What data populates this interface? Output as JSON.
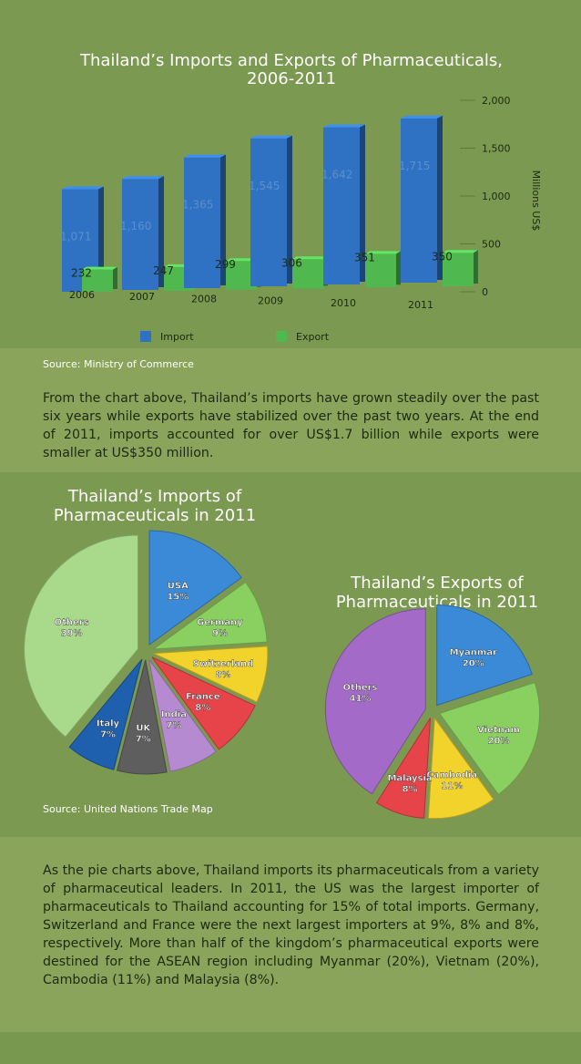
{
  "bar_chart": {
    "title_line1": "Thailand’s Imports and Exports of Pharmaceuticals,",
    "title_line2": "2006-2011",
    "source": "Source: Ministry of Commerce"
  },
  "paragraph1": "From the chart above, Thailand’s imports have grown steadily over the past six years while exports have stabilized over the past two years. At the end of 2011, imports accounted for over US$1.7 billion while exports were smaller at US$350 million.",
  "imports_pie": {
    "title_line1": "Thailand’s Imports of",
    "title_line2": "Pharmaceuticals in 2011"
  },
  "exports_pie": {
    "title_line1": "Thailand’s Exports of",
    "title_line2": "Pharmaceuticals in 2011"
  },
  "pie_source": "Source: United Nations Trade Map",
  "paragraph2": "As the pie charts above, Thailand imports its pharmaceuticals from a variety of pharmaceutical leaders. In 2011, the US was the largest importer of pharmaceuticals to Thailand accounting for 15% of total imports. Germany, Switzerland and France were the next largest importers at 9%, 8% and 8%, respectively. More than half of the kingdom’s pharmaceutical exports were destined for the ASEAN region including Myanmar (20%), Vietnam (20%), Cambodia (11%) and Malaysia (8%).",
  "chart_data": [
    {
      "type": "bar",
      "title": "Thailand’s Imports and Exports of Pharmaceuticals, 2006-2011",
      "categories": [
        "2006",
        "2007",
        "2008",
        "2009",
        "2010",
        "2011"
      ],
      "series": [
        {
          "name": "Import",
          "values": [
            1071,
            1160,
            1365,
            1545,
            1642,
            1715
          ],
          "labels": [
            "1,071",
            "1,160",
            "1,365",
            "1,545",
            "1,642",
            "1,715"
          ],
          "color": "#2f72c4"
        },
        {
          "name": "Export",
          "values": [
            232,
            247,
            299,
            306,
            351,
            350
          ],
          "labels": [
            "232",
            "247",
            "299",
            "306",
            "351",
            "350"
          ],
          "color": "#4fb84f"
        }
      ],
      "ylabel": "Millions US$",
      "ylim": [
        0,
        2000
      ],
      "yticks": [
        "0",
        "500",
        "1,000",
        "1,500",
        "2,000"
      ],
      "legend_position": "bottom",
      "grid": false
    },
    {
      "type": "pie",
      "title": "Thailand’s Imports of Pharmaceuticals in 2011",
      "slices": [
        {
          "label": "USA",
          "value": 15,
          "pct": "15%",
          "color": "#3a8ad8"
        },
        {
          "label": "Germany",
          "value": 9,
          "pct": "9%",
          "color": "#8ad060"
        },
        {
          "label": "Switzerland",
          "value": 8,
          "pct": "8%",
          "color": "#f2d32b"
        },
        {
          "label": "France",
          "value": 8,
          "pct": "8%",
          "color": "#e7444a"
        },
        {
          "label": "India",
          "value": 7,
          "pct": "7%",
          "color": "#b68ad0"
        },
        {
          "label": "UK",
          "value": 7,
          "pct": "7%",
          "color": "#5e5e5e"
        },
        {
          "label": "Italy",
          "value": 7,
          "pct": "7%",
          "color": "#1e5fae"
        },
        {
          "label": "Others",
          "value": 39,
          "pct": "39%",
          "color": "#a9d98a"
        }
      ]
    },
    {
      "type": "pie",
      "title": "Thailand’s Exports of Pharmaceuticals in 2011",
      "slices": [
        {
          "label": "Myanmar",
          "value": 20,
          "pct": "20%",
          "color": "#3a8ad8"
        },
        {
          "label": "Vietnam",
          "value": 20,
          "pct": "20%",
          "color": "#8ad060"
        },
        {
          "label": "Cambodia",
          "value": 11,
          "pct": "11%",
          "color": "#f2d32b"
        },
        {
          "label": "Malaysia",
          "value": 8,
          "pct": "8%",
          "color": "#e7444a"
        },
        {
          "label": "Others",
          "value": 41,
          "pct": "41%",
          "color": "#a46ac8"
        }
      ]
    }
  ]
}
